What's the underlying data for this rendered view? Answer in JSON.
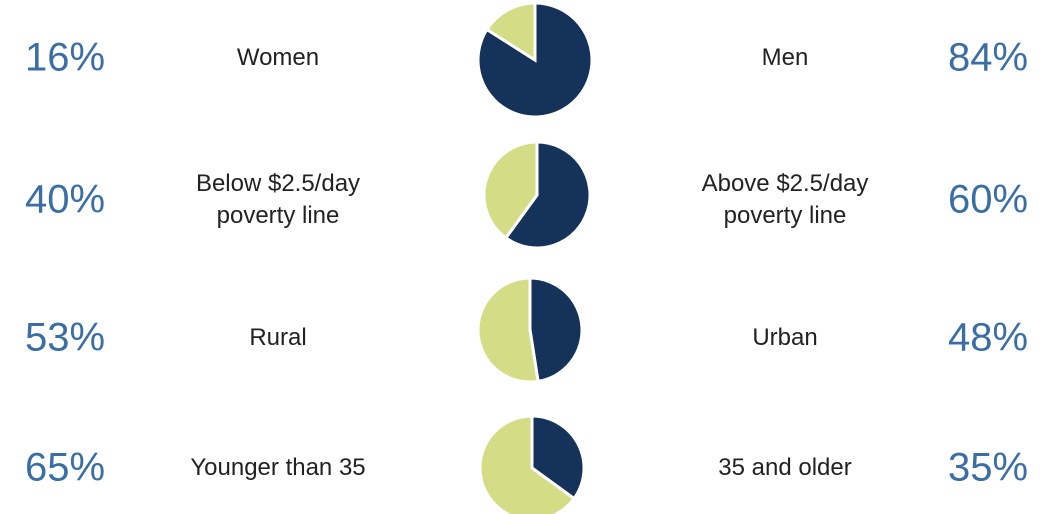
{
  "chart_data": [
    {
      "type": "pie",
      "categories": [
        "Women",
        "Men"
      ],
      "values": [
        16,
        84
      ],
      "value_labels": [
        "16%",
        "84%"
      ],
      "colors": [
        "#d4dc86",
        "#14325a"
      ]
    },
    {
      "type": "pie",
      "categories": [
        "Below $2.5/day poverty line",
        "Above $2.5/day poverty line"
      ],
      "values": [
        40,
        60
      ],
      "value_labels": [
        "40%",
        "60%"
      ],
      "colors": [
        "#d4dc86",
        "#14325a"
      ]
    },
    {
      "type": "pie",
      "categories": [
        "Rural",
        "Urban"
      ],
      "values": [
        53,
        48
      ],
      "value_labels": [
        "53%",
        "48%"
      ],
      "colors": [
        "#d4dc86",
        "#14325a"
      ]
    },
    {
      "type": "pie",
      "categories": [
        "Younger than 35",
        "35 and older"
      ],
      "values": [
        65,
        35
      ],
      "value_labels": [
        "65%",
        "35%"
      ],
      "colors": [
        "#d4dc86",
        "#14325a"
      ]
    }
  ]
}
